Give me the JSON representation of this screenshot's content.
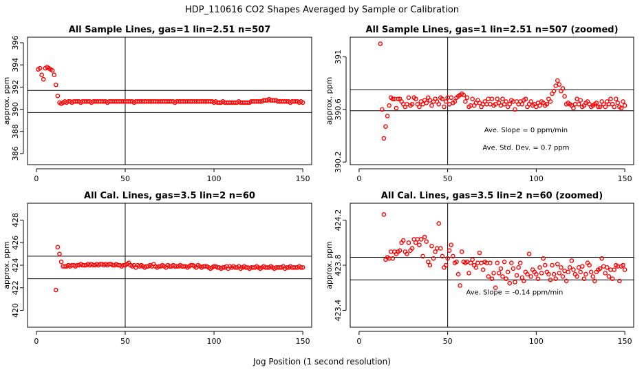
{
  "figure": {
    "title": "HDP_110616  CO2 Shapes Averaged by Sample or Calibration",
    "xlabel": "Jog Position (1 second resolution)"
  },
  "chart_data": [
    {
      "type": "scatter",
      "title": "All Sample Lines, gas=1 lin=2.51 n=507",
      "ylabel": "approx. ppm",
      "xlim": [
        -5,
        155
      ],
      "ylim": [
        385,
        396.5
      ],
      "xticks": [
        0,
        50,
        100,
        150
      ],
      "yticks": [
        386,
        388,
        390,
        392,
        394,
        396
      ],
      "hlines": [
        391.7,
        389.7
      ],
      "vlines": [
        50
      ],
      "marker_color": "#ff0000",
      "annotations": [],
      "x_range": [
        1,
        150
      ],
      "y_values": [
        393.6,
        393.7,
        393.1,
        392.7,
        393.7,
        393.8,
        393.7,
        393.6,
        393.5,
        393.1,
        392.2,
        391.2,
        390.6,
        390.5,
        390.6,
        390.7,
        390.6,
        390.7,
        390.7,
        390.6,
        390.7,
        390.7,
        390.7,
        390.7,
        390.6,
        390.7,
        390.7,
        390.7,
        390.7,
        390.7,
        390.6,
        390.7,
        390.7,
        390.7,
        390.7,
        390.7,
        390.7,
        390.7,
        390.7,
        390.6,
        390.7,
        390.7,
        390.7,
        390.7,
        390.7,
        390.7,
        390.7,
        390.7,
        390.7,
        390.7,
        390.7,
        390.7,
        390.7,
        390.7,
        390.6,
        390.7,
        390.7,
        390.7,
        390.7,
        390.7,
        390.7,
        390.7,
        390.7,
        390.7,
        390.7,
        390.7,
        390.7,
        390.7,
        390.7,
        390.7,
        390.7,
        390.7,
        390.7,
        390.7,
        390.7,
        390.7,
        390.7,
        390.6,
        390.7,
        390.7,
        390.7,
        390.7,
        390.7,
        390.7,
        390.7,
        390.7,
        390.7,
        390.7,
        390.7,
        390.7,
        390.7,
        390.7,
        390.7,
        390.7,
        390.7,
        390.7,
        390.7,
        390.7,
        390.7,
        390.6,
        390.7,
        390.6,
        390.6,
        390.6,
        390.7,
        390.6,
        390.6,
        390.6,
        390.6,
        390.6,
        390.6,
        390.6,
        390.6,
        390.7,
        390.6,
        390.6,
        390.6,
        390.6,
        390.6,
        390.6,
        390.7,
        390.7,
        390.7,
        390.7,
        390.7,
        390.7,
        390.7,
        390.8,
        390.8,
        390.8,
        390.9,
        390.8,
        390.8,
        390.8,
        390.8,
        390.7,
        390.7,
        390.7,
        390.7,
        390.7,
        390.7,
        390.7,
        390.6,
        390.7,
        390.7,
        390.7,
        390.7,
        390.6,
        390.7,
        390.6
      ]
    },
    {
      "type": "scatter",
      "title": "All Sample Lines, gas=1 lin=2.51 n=507 (zoomed)",
      "ylabel": "approx. ppm",
      "xlim": [
        -5,
        155
      ],
      "ylim": [
        390.18,
        391.15
      ],
      "xticks": [
        0,
        50,
        100,
        150
      ],
      "yticks": [
        390.2,
        390.6,
        391.0
      ],
      "hlines": [
        390.75,
        390.59
      ],
      "vlines": [
        50
      ],
      "marker_color": "#ff0000",
      "annotations": [
        "Ave. Slope =  0  ppm/min",
        "Ave. Std. Dev. =  0.7  ppm"
      ],
      "x_range": [
        12,
        150
      ],
      "y_values": [
        391.1,
        390.6,
        390.38,
        390.47,
        390.55,
        390.63,
        390.69,
        390.68,
        390.68,
        390.61,
        390.68,
        390.68,
        390.66,
        390.64,
        390.62,
        390.64,
        390.69,
        390.63,
        390.64,
        390.69,
        390.68,
        390.64,
        390.62,
        390.66,
        390.64,
        390.67,
        390.65,
        390.69,
        390.67,
        390.63,
        390.66,
        390.68,
        390.66,
        390.64,
        390.69,
        390.68,
        390.62,
        390.66,
        390.69,
        390.64,
        390.69,
        390.65,
        390.66,
        390.69,
        390.7,
        390.71,
        390.72,
        390.71,
        390.66,
        390.69,
        390.62,
        390.63,
        390.68,
        390.63,
        390.65,
        390.67,
        390.65,
        390.62,
        390.64,
        390.66,
        390.64,
        390.68,
        390.64,
        390.68,
        390.63,
        390.64,
        390.68,
        390.65,
        390.63,
        390.68,
        390.64,
        390.66,
        390.62,
        390.64,
        390.67,
        390.66,
        390.6,
        390.66,
        390.64,
        390.66,
        390.64,
        390.67,
        390.68,
        390.62,
        390.64,
        390.66,
        390.63,
        390.64,
        390.62,
        390.65,
        390.63,
        390.66,
        390.65,
        390.63,
        390.64,
        390.68,
        390.66,
        390.72,
        390.74,
        390.78,
        390.82,
        390.79,
        390.74,
        390.76,
        390.7,
        390.64,
        390.65,
        390.64,
        390.63,
        390.61,
        390.64,
        390.68,
        390.64,
        390.67,
        390.62,
        390.63,
        390.65,
        390.66,
        390.64,
        390.62,
        390.63,
        390.64,
        390.65,
        390.62,
        390.62,
        390.66,
        390.64,
        390.62,
        390.66,
        390.64,
        390.68,
        390.64,
        390.62,
        390.68,
        390.65,
        390.62,
        390.61,
        390.66,
        390.63
      ]
    },
    {
      "type": "scatter",
      "title": "All Cal. Lines, gas=3.5 lin=2 n=60",
      "ylabel": "approx. ppm",
      "xlim": [
        -5,
        155
      ],
      "ylim": [
        418.5,
        429.5
      ],
      "xticks": [
        0,
        50,
        100,
        150
      ],
      "yticks": [
        420,
        422,
        424,
        426,
        428
      ],
      "hlines": [
        424.8,
        422.8
      ],
      "vlines": [
        50
      ],
      "marker_color": "#ff0000",
      "annotations": [],
      "x_range": [
        11,
        150
      ],
      "y_values": [
        421.8,
        425.6,
        425.0,
        424.3,
        423.9,
        423.9,
        423.9,
        424.0,
        423.9,
        424.0,
        424.0,
        423.9,
        424.0,
        424.0,
        424.1,
        424.0,
        424.0,
        424.0,
        424.1,
        424.0,
        424.1,
        424.0,
        424.0,
        424.1,
        424.0,
        424.1,
        424.1,
        424.0,
        424.1,
        424.0,
        424.1,
        424.1,
        424.0,
        424.0,
        424.1,
        424.0,
        424.0,
        423.9,
        424.0,
        424.0,
        424.1,
        424.2,
        424.0,
        423.9,
        424.0,
        423.8,
        424.0,
        423.9,
        424.0,
        423.9,
        423.8,
        423.9,
        423.9,
        424.0,
        423.9,
        424.1,
        423.9,
        423.8,
        423.9,
        423.9,
        424.0,
        423.9,
        423.8,
        424.0,
        423.9,
        423.9,
        424.0,
        423.9,
        423.9,
        423.9,
        424.0,
        423.9,
        423.9,
        423.9,
        423.8,
        423.9,
        424.0,
        424.0,
        423.9,
        423.8,
        424.0,
        423.9,
        423.8,
        423.9,
        423.9,
        423.9,
        423.8,
        423.7,
        423.8,
        423.9,
        423.9,
        423.8,
        423.8,
        423.7,
        423.8,
        423.8,
        423.9,
        423.7,
        423.9,
        423.8,
        423.9,
        423.8,
        423.8,
        423.9,
        423.7,
        423.8,
        423.9,
        423.8,
        423.8,
        423.7,
        423.8,
        423.8,
        423.8,
        423.9,
        423.8,
        423.7,
        423.8,
        423.9,
        423.8,
        423.8,
        423.8,
        423.9,
        423.8,
        423.7,
        423.8,
        423.8,
        423.8,
        423.8,
        423.9,
        423.7,
        423.8,
        423.8,
        423.9,
        423.8,
        423.8,
        423.8,
        423.8,
        423.9,
        423.8,
        423.8
      ]
    },
    {
      "type": "scatter",
      "title": "All Cal. Lines, gas=3.5 lin=2 n=60 (zoomed)",
      "ylabel": "approx. ppm",
      "xlim": [
        -5,
        155
      ],
      "ylim": [
        423.25,
        424.35
      ],
      "xticks": [
        0,
        50,
        100,
        150
      ],
      "yticks": [
        423.4,
        423.8,
        424.2
      ],
      "hlines": [
        423.87,
        423.67
      ],
      "vlines": [
        50
      ],
      "marker_color": "#ff0000",
      "annotations": [
        "Ave. Slope =  -0.14  ppm/min"
      ],
      "x_range": [
        14,
        150
      ],
      "y_values": [
        424.25,
        423.85,
        423.87,
        423.86,
        423.92,
        423.86,
        423.92,
        423.9,
        423.92,
        423.93,
        424.0,
        424.02,
        423.92,
        423.9,
        424.0,
        423.93,
        423.95,
        424.03,
        424.0,
        424.03,
        423.98,
        424.03,
        423.88,
        424.05,
        424.01,
        423.83,
        423.8,
        423.97,
        423.86,
        423.92,
        423.95,
        424.17,
        423.95,
        423.88,
        423.78,
        423.8,
        423.86,
        423.93,
        423.98,
        423.88,
        423.82,
        423.83,
        423.72,
        423.62,
        423.92,
        423.83,
        423.82,
        423.83,
        423.73,
        423.82,
        423.85,
        423.8,
        423.78,
        423.82,
        423.91,
        423.82,
        423.76,
        423.83,
        423.82,
        423.7,
        423.82,
        423.68,
        423.73,
        423.6,
        423.82,
        423.73,
        423.77,
        423.7,
        423.83,
        423.68,
        423.74,
        423.64,
        423.82,
        423.77,
        423.65,
        423.71,
        423.78,
        423.82,
        423.69,
        423.66,
        423.74,
        423.72,
        423.9,
        423.7,
        423.76,
        423.74,
        423.72,
        423.68,
        423.78,
        423.73,
        423.86,
        423.8,
        423.74,
        423.72,
        423.67,
        423.8,
        423.72,
        423.68,
        423.81,
        423.73,
        423.78,
        423.7,
        423.75,
        423.66,
        423.74,
        423.78,
        423.84,
        423.76,
        423.72,
        423.7,
        423.78,
        423.74,
        423.79,
        423.68,
        423.72,
        423.82,
        423.8,
        423.74,
        423.7,
        423.66,
        423.74,
        423.76,
        423.77,
        423.86,
        423.79,
        423.73,
        423.78,
        423.7,
        423.76,
        423.68,
        423.76,
        423.8,
        423.79,
        423.66,
        423.79,
        423.8,
        423.76
      ]
    }
  ]
}
